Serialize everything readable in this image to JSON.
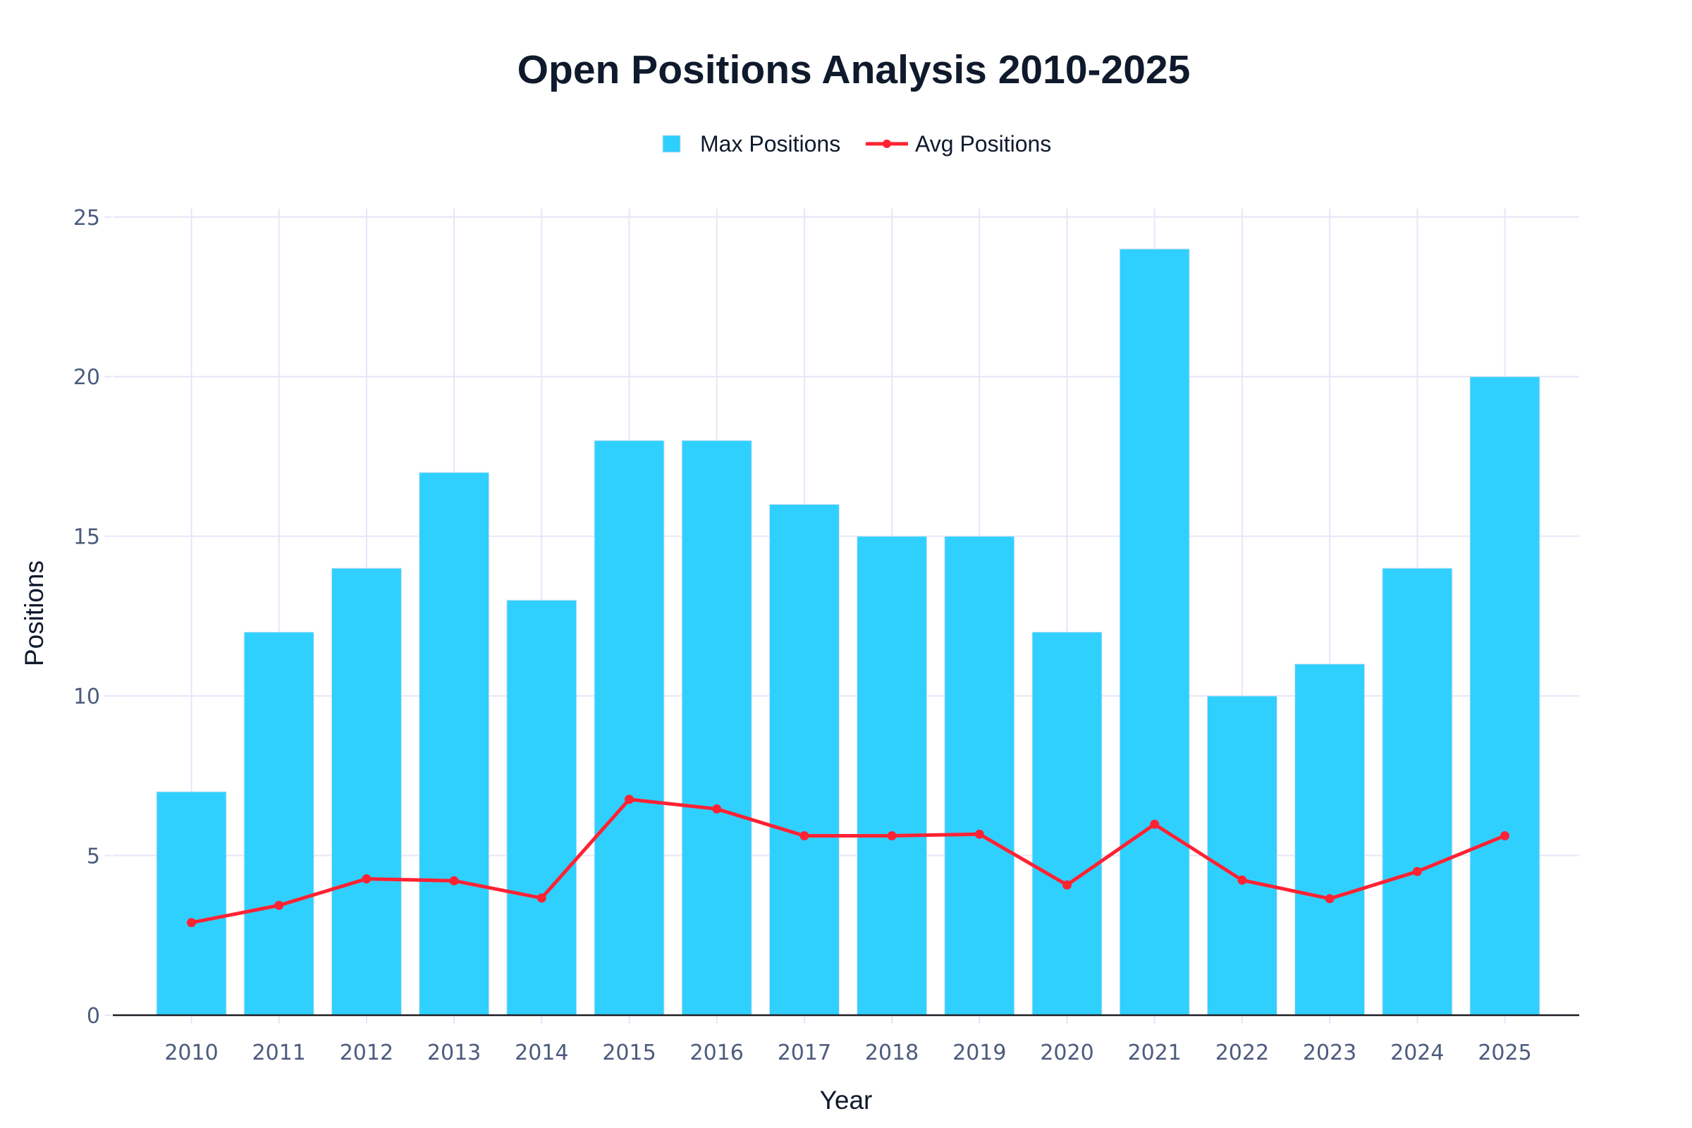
{
  "chart_data": {
    "type": "bar",
    "title": "Open Positions Analysis 2010-2025",
    "xlabel": "Year",
    "ylabel": "Positions",
    "categories": [
      "2010",
      "2011",
      "2012",
      "2013",
      "2014",
      "2015",
      "2016",
      "2017",
      "2018",
      "2019",
      "2020",
      "2021",
      "2022",
      "2023",
      "2024",
      "2025"
    ],
    "ylim": [
      0,
      25.26
    ],
    "yticks": [
      0,
      5,
      10,
      15,
      20,
      25
    ],
    "grid": true,
    "legend_position": "top-center",
    "series": [
      {
        "name": "Max Positions",
        "kind": "bar",
        "color": "#2ccffe",
        "values": [
          7,
          12,
          14,
          17,
          13,
          18,
          18,
          16,
          15,
          15,
          12,
          24,
          10,
          11,
          14,
          20
        ]
      },
      {
        "name": "Avg Positions",
        "kind": "line",
        "color": "#ff2233",
        "values": [
          2.9,
          3.44,
          4.27,
          4.21,
          3.67,
          6.76,
          6.46,
          5.62,
          5.62,
          5.67,
          4.08,
          5.98,
          4.23,
          3.65,
          4.5,
          5.62
        ]
      }
    ]
  }
}
